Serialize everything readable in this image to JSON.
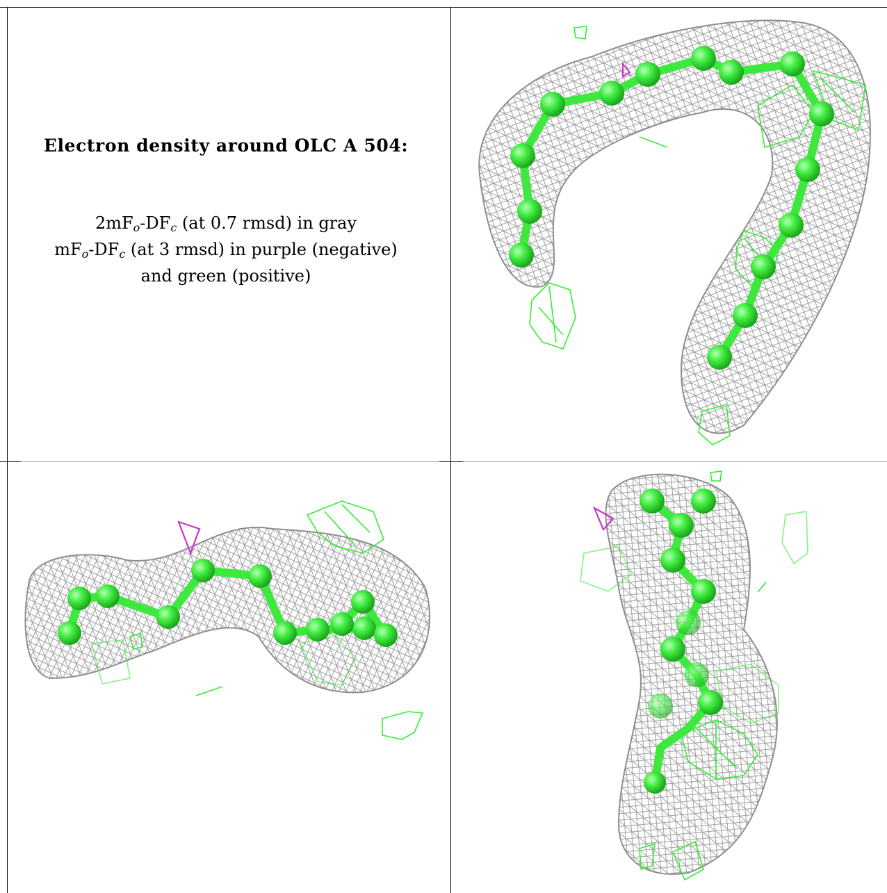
{
  "caption": {
    "title": "Electron density around OLC A 504:",
    "line1": {
      "prefix": "2mF",
      "sub1": "o",
      "mid": "-DF",
      "sub2": "c",
      "suffix": " (at 0.7 rmsd) in gray"
    },
    "line2": {
      "prefix": "mF",
      "sub1": "o",
      "mid": "-DF",
      "sub2": "c",
      "suffix": " (at 3 rmsd) in purple (negative)"
    },
    "line3": "and green (positive)"
  },
  "colors": {
    "mesh_gray": "#9e9e9e",
    "negative_purple": "#cc33cc",
    "positive_green": "#33ee33",
    "atom_green": "#44ee44"
  },
  "panels": [
    {
      "id": "view-1",
      "ligand": "OLC A 504"
    },
    {
      "id": "view-2",
      "ligand": "OLC A 504"
    },
    {
      "id": "view-3",
      "ligand": "OLC A 504"
    }
  ]
}
